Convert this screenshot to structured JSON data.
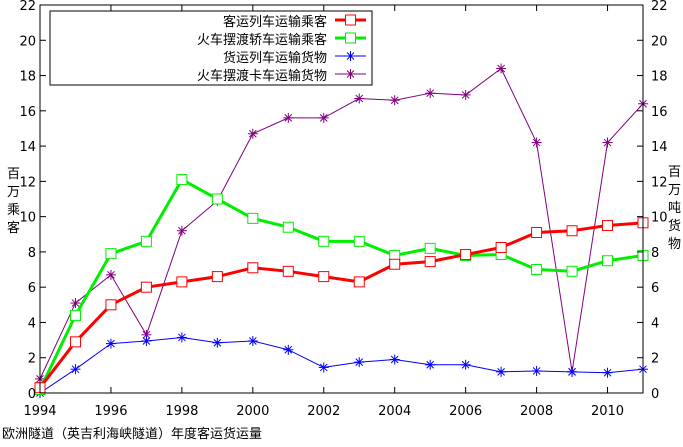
{
  "chart_data": {
    "type": "line",
    "caption": "欧洲隧道（英吉利海峡隧道）年度客运货运量",
    "left_axis_title": [
      "百",
      "万",
      "乘",
      "客"
    ],
    "right_axis_title": [
      "百",
      "万",
      "吨",
      "货",
      "物"
    ],
    "x": [
      1994,
      1995,
      1996,
      1997,
      1998,
      1999,
      2000,
      2001,
      2002,
      2003,
      2004,
      2005,
      2006,
      2007,
      2008,
      2009,
      2010,
      2011
    ],
    "x_ticks": [
      "1994",
      "1996",
      "1998",
      "2000",
      "2002",
      "2004",
      "2006",
      "2008",
      "2010"
    ],
    "xlim": [
      1994,
      2011
    ],
    "ylim": [
      0,
      22
    ],
    "y_ticks": [
      "0",
      "2",
      "4",
      "6",
      "8",
      "10",
      "12",
      "14",
      "16",
      "18",
      "20",
      "22"
    ],
    "grid": false,
    "legend_position": "top-left",
    "series": [
      {
        "name": "客运列车运输乘客",
        "axis": "left",
        "color": "#ff0000",
        "marker": "square",
        "line_width": 3,
        "values": [
          0.3,
          2.9,
          5.0,
          6.0,
          6.3,
          6.6,
          7.1,
          6.9,
          6.6,
          6.3,
          7.3,
          7.45,
          7.85,
          8.25,
          9.1,
          9.2,
          9.5,
          9.65
        ]
      },
      {
        "name": "火车摆渡轿车运输乘客",
        "axis": "left",
        "color": "#00ee00",
        "marker": "square",
        "line_width": 3,
        "values": [
          0.2,
          4.4,
          7.9,
          8.6,
          12.1,
          11.0,
          9.9,
          9.4,
          8.6,
          8.6,
          7.8,
          8.2,
          7.8,
          7.85,
          7.0,
          6.9,
          7.5,
          7.8
        ]
      },
      {
        "name": "货运列车运输货物",
        "axis": "right",
        "color": "#0000ff",
        "marker": "asterisk",
        "line_width": 1,
        "values": [
          0.0,
          1.35,
          2.8,
          2.95,
          3.15,
          2.85,
          2.95,
          2.45,
          1.45,
          1.75,
          1.9,
          1.6,
          1.6,
          1.2,
          1.25,
          1.2,
          1.15,
          1.35
        ]
      },
      {
        "name": "火车摆渡卡车运输货物",
        "axis": "right",
        "color": "#800080",
        "marker": "asterisk",
        "line_width": 1,
        "values": [
          0.8,
          5.1,
          6.7,
          3.3,
          9.2,
          10.9,
          14.7,
          15.6,
          15.6,
          16.7,
          16.6,
          17.0,
          16.9,
          18.4,
          14.2,
          1.2,
          14.2,
          16.4
        ]
      }
    ]
  }
}
